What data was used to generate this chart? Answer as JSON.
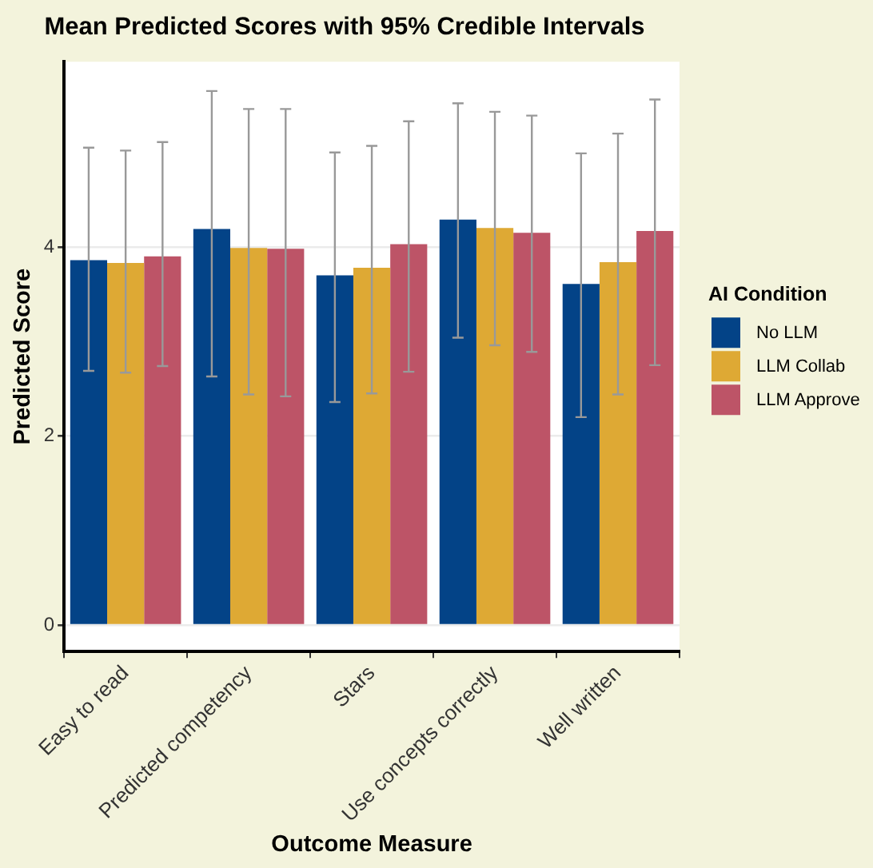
{
  "chart_data": {
    "type": "bar",
    "title": "Mean Predicted Scores with 95% Credible Intervals",
    "xlabel": "Outcome Measure",
    "ylabel": "Predicted Score",
    "legend_title": "AI Condition",
    "categories": [
      "Easy to read",
      "Predicted competency",
      "Stars",
      "Use concepts correctly",
      "Well written"
    ],
    "series": [
      {
        "name": "No LLM",
        "color": "#034387",
        "values": [
          3.86,
          4.19,
          3.7,
          4.29,
          3.61
        ],
        "errors": [
          [
            2.69,
            5.05
          ],
          [
            2.63,
            5.65
          ],
          [
            2.36,
            5.0
          ],
          [
            3.04,
            5.52
          ],
          [
            2.2,
            4.99
          ]
        ]
      },
      {
        "name": "LLM Collab",
        "color": "#dea934",
        "values": [
          3.83,
          3.99,
          3.78,
          4.2,
          3.84
        ],
        "errors": [
          [
            2.67,
            5.02
          ],
          [
            2.44,
            5.46
          ],
          [
            2.45,
            5.07
          ],
          [
            2.96,
            5.43
          ],
          [
            2.44,
            5.2
          ]
        ]
      },
      {
        "name": "LLM Approve",
        "color": "#bd5467",
        "values": [
          3.9,
          3.98,
          4.03,
          4.15,
          4.17
        ],
        "errors": [
          [
            2.74,
            5.11
          ],
          [
            2.42,
            5.46
          ],
          [
            2.68,
            5.33
          ],
          [
            2.89,
            5.39
          ],
          [
            2.75,
            5.56
          ]
        ]
      }
    ],
    "ylim": [
      -0.28,
      5.96
    ],
    "yticks": [
      0,
      2,
      4
    ],
    "grid": "y",
    "legend": "right"
  }
}
